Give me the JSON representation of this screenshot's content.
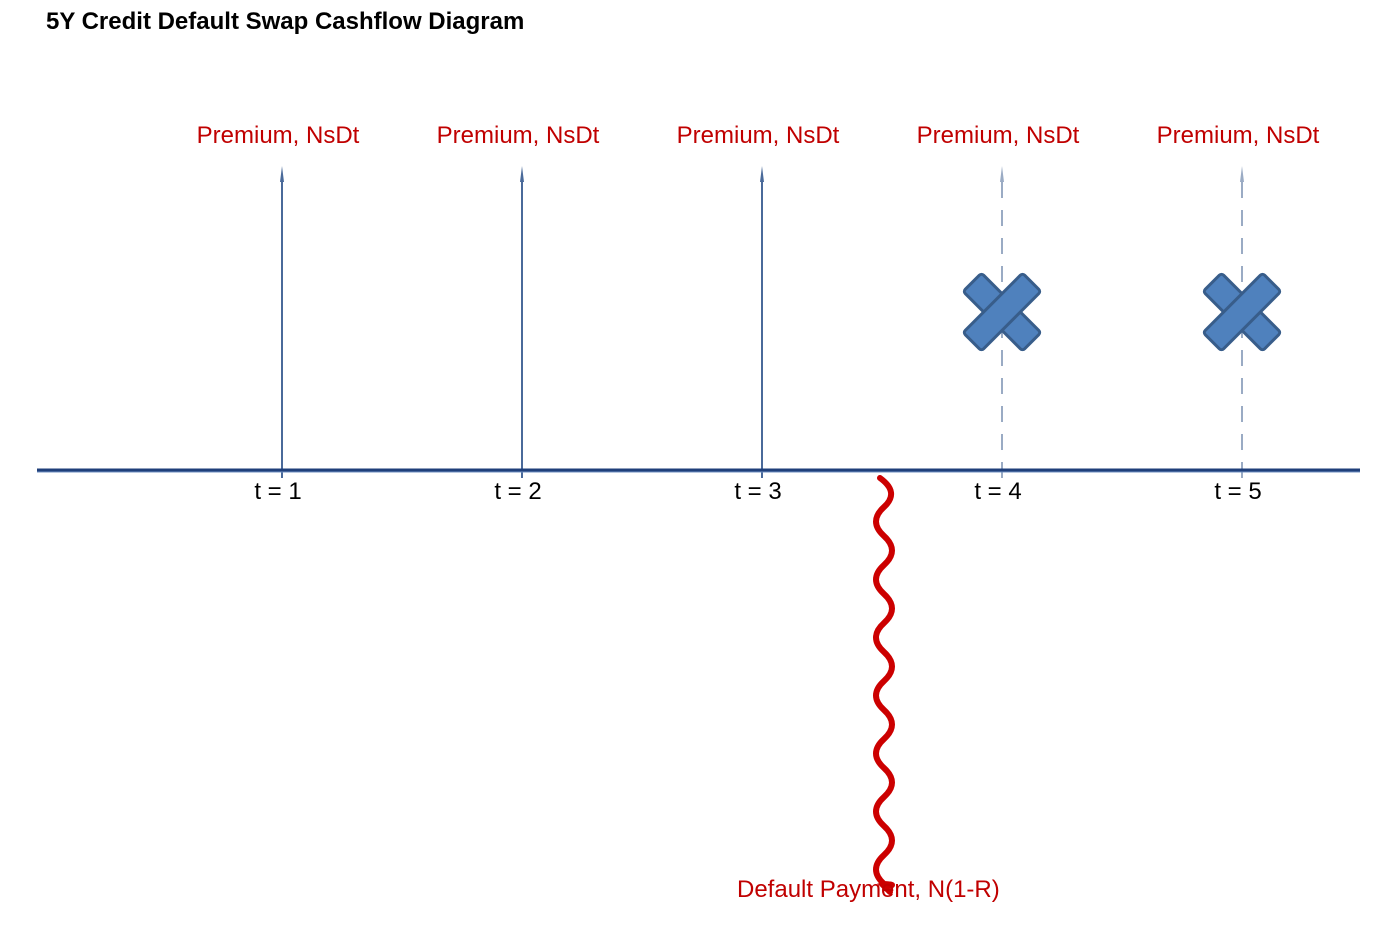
{
  "title": "5Y Credit Default Swap Cashflow Diagram",
  "colors": {
    "premium_label": "#c00000",
    "arrow": "#4a6a9a",
    "axis": "#1f3f7a",
    "cancel_mark_fill": "#4f81bd",
    "cancel_mark_stroke": "#385d8a",
    "default_wave": "#cc0000"
  },
  "timeline": {
    "ticks": [
      {
        "label": "t = 1",
        "premium": "Premium, NsDt",
        "status": "paid"
      },
      {
        "label": "t = 2",
        "premium": "Premium, NsDt",
        "status": "paid"
      },
      {
        "label": "t = 3",
        "premium": "Premium, NsDt",
        "status": "paid"
      },
      {
        "label": "t = 4",
        "premium": "Premium, NsDt",
        "status": "cancelled"
      },
      {
        "label": "t = 5",
        "premium": "Premium, NsDt",
        "status": "cancelled"
      }
    ]
  },
  "default_event": {
    "between": [
      "t = 3",
      "t = 4"
    ],
    "label": "Default Payment, N(1-R)"
  }
}
